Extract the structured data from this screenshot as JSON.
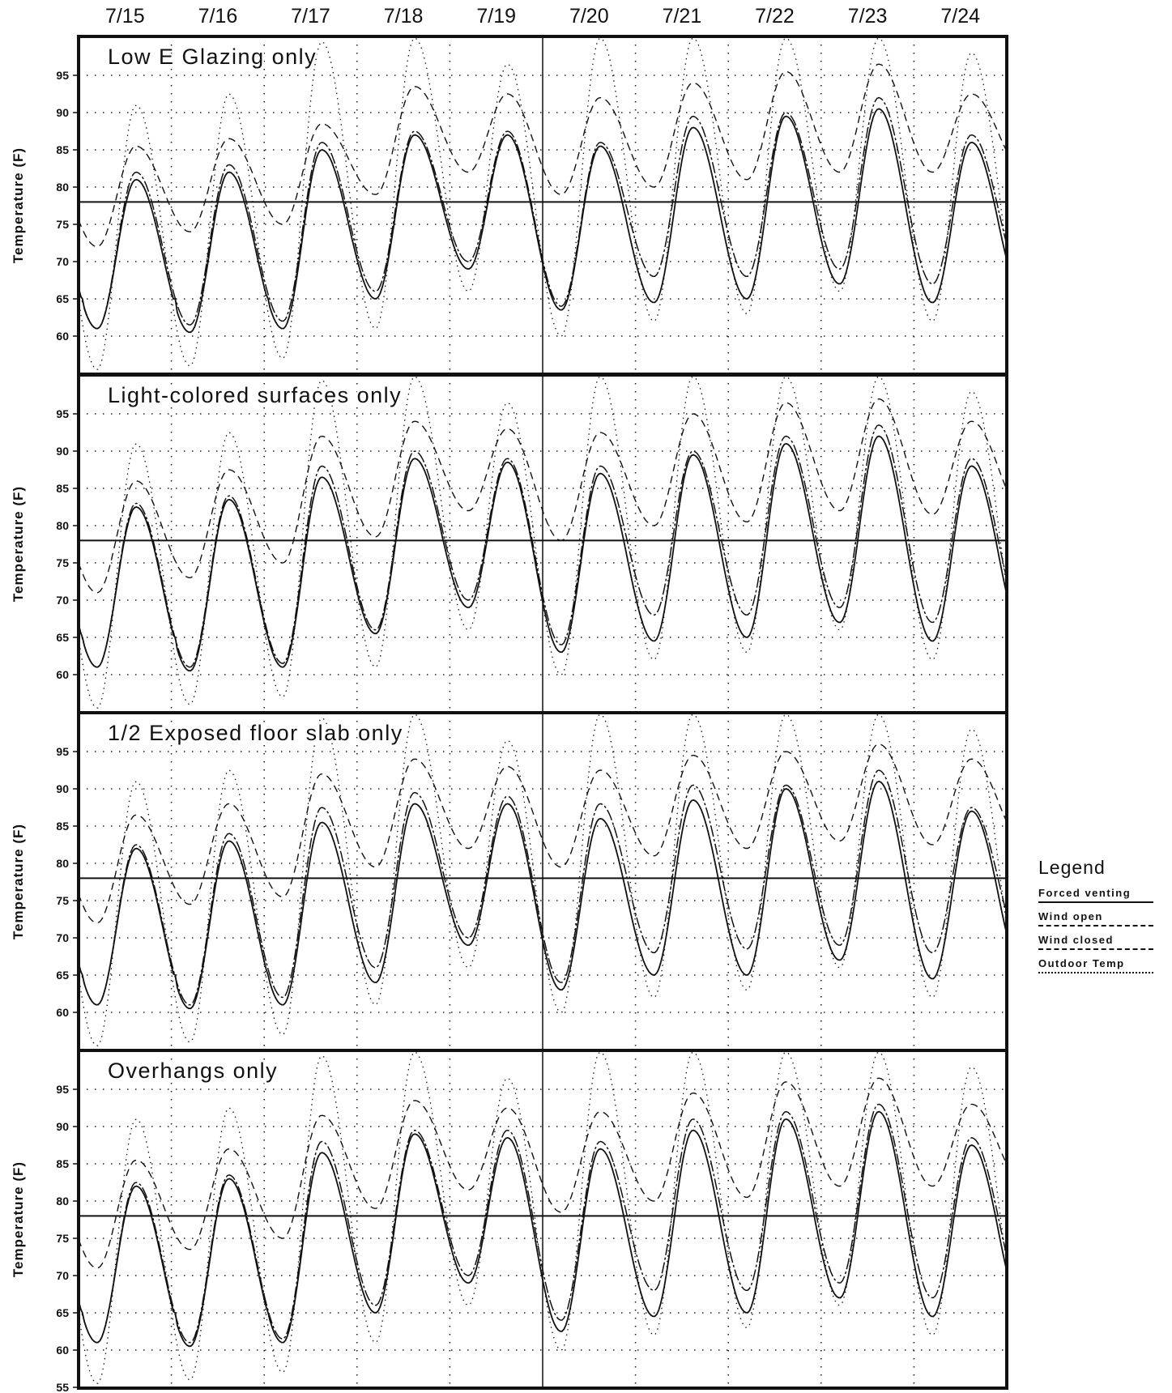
{
  "chart_data": {
    "type": "line",
    "ylabel": "Temperature (F)",
    "dates": [
      "7/15",
      "7/16",
      "7/17",
      "7/18",
      "7/19",
      "7/20",
      "7/21",
      "7/22",
      "7/23",
      "7/24"
    ],
    "ylim": [
      55,
      100
    ],
    "yticks": [
      55,
      60,
      65,
      70,
      75,
      80,
      85,
      90,
      95
    ],
    "reference_line": 78,
    "grid": "dotted",
    "legend": {
      "title": "Legend",
      "placement": "right",
      "entries": [
        "Forced venting",
        "Wind open",
        "Wind closed",
        "Outdoor Temp"
      ]
    },
    "series_names": [
      "Forced venting",
      "Wind open",
      "Wind closed",
      "Outdoor Temp"
    ],
    "outdoor_min": [
      55.5,
      56.0,
      57.0,
      61.0,
      66.0,
      60.0,
      62.0,
      63.0,
      66.0,
      62.0
    ],
    "outdoor_max": [
      91.0,
      92.5,
      99.5,
      100.0,
      96.5,
      100.0,
      100.0,
      100.0,
      100.0,
      98.0
    ],
    "panels": [
      {
        "title": "Low E Glazing only",
        "show_55": false,
        "closed_min": [
          72.0,
          74.0,
          75.0,
          79.0,
          82.0,
          79.0,
          80.0,
          81.0,
          82.0,
          82.0
        ],
        "closed_max": [
          85.5,
          86.5,
          88.5,
          93.5,
          92.5,
          92.0,
          94.0,
          95.5,
          96.5,
          92.5
        ],
        "open_min": [
          61.0,
          61.5,
          62.0,
          66.0,
          70.0,
          64.0,
          68.0,
          68.0,
          69.0,
          67.0
        ],
        "open_max": [
          82.0,
          83.0,
          86.0,
          87.5,
          87.5,
          86.0,
          89.5,
          90.0,
          92.0,
          87.0
        ],
        "forced_min": [
          61.0,
          60.5,
          61.0,
          65.0,
          69.0,
          63.5,
          64.5,
          65.0,
          67.0,
          64.5
        ],
        "forced_max": [
          81.0,
          82.0,
          85.0,
          87.0,
          87.0,
          85.5,
          88.0,
          89.5,
          90.5,
          86.0
        ]
      },
      {
        "title": "Light-colored surfaces only",
        "show_55": false,
        "closed_min": [
          71.0,
          73.0,
          75.0,
          78.5,
          82.0,
          78.0,
          80.0,
          80.5,
          82.0,
          81.5
        ],
        "closed_max": [
          86.0,
          87.5,
          92.0,
          94.0,
          93.0,
          92.5,
          95.0,
          96.5,
          97.0,
          94.0
        ],
        "open_min": [
          61.0,
          61.0,
          61.5,
          66.0,
          70.0,
          64.0,
          68.0,
          68.0,
          69.0,
          67.0
        ],
        "open_max": [
          83.0,
          84.0,
          88.0,
          90.0,
          89.0,
          88.0,
          90.0,
          92.0,
          93.5,
          89.0
        ],
        "forced_min": [
          61.0,
          60.5,
          61.0,
          65.5,
          69.0,
          63.0,
          64.5,
          65.0,
          67.0,
          64.5
        ],
        "forced_max": [
          82.5,
          83.5,
          86.5,
          89.0,
          88.5,
          87.0,
          89.5,
          91.0,
          92.0,
          88.0
        ]
      },
      {
        "title": "1/2 Exposed floor slab only",
        "show_55": false,
        "closed_min": [
          72.0,
          74.5,
          75.5,
          79.5,
          82.0,
          79.5,
          81.0,
          82.0,
          83.0,
          82.5
        ],
        "closed_max": [
          86.5,
          88.0,
          92.0,
          94.0,
          93.0,
          92.5,
          94.5,
          95.0,
          96.0,
          94.0
        ],
        "open_min": [
          61.0,
          61.0,
          62.0,
          66.0,
          70.0,
          64.0,
          68.0,
          68.5,
          69.0,
          68.0
        ],
        "open_max": [
          82.5,
          84.0,
          87.5,
          89.5,
          89.0,
          88.0,
          90.5,
          90.5,
          92.5,
          87.5
        ],
        "forced_min": [
          61.0,
          60.5,
          61.0,
          64.0,
          69.0,
          63.0,
          65.0,
          65.0,
          67.0,
          64.5
        ],
        "forced_max": [
          82.0,
          83.0,
          85.5,
          88.0,
          88.0,
          86.0,
          88.5,
          90.0,
          91.0,
          87.0
        ]
      },
      {
        "title": "Overhangs only",
        "show_55": true,
        "closed_min": [
          71.0,
          73.5,
          75.0,
          79.0,
          81.5,
          78.5,
          80.0,
          80.5,
          82.0,
          82.0
        ],
        "closed_max": [
          85.5,
          87.0,
          91.5,
          93.5,
          92.5,
          92.0,
          94.5,
          96.0,
          96.5,
          93.0
        ],
        "open_min": [
          61.0,
          61.0,
          61.5,
          66.0,
          70.0,
          64.0,
          68.0,
          68.0,
          69.0,
          67.0
        ],
        "open_max": [
          82.5,
          83.5,
          88.0,
          89.5,
          89.5,
          88.0,
          91.0,
          92.0,
          93.0,
          88.5
        ],
        "forced_min": [
          61.0,
          60.5,
          61.0,
          65.0,
          69.0,
          62.5,
          64.5,
          65.0,
          67.0,
          64.5
        ],
        "forced_max": [
          82.0,
          83.0,
          86.5,
          89.0,
          88.5,
          87.0,
          89.5,
          91.0,
          92.0,
          87.5
        ]
      }
    ]
  }
}
